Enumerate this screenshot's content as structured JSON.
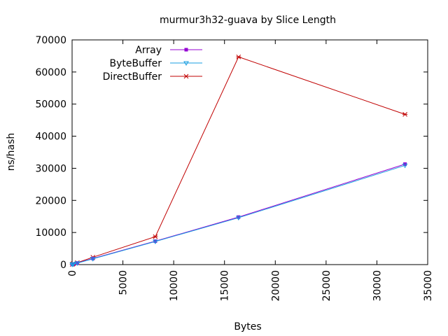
{
  "chart_data": {
    "type": "line",
    "title": "murmur3h32-guava by Slice Length",
    "xlabel": "Bytes",
    "ylabel": "ns/hash",
    "xlim": [
      0,
      35000
    ],
    "ylim": [
      0,
      70000
    ],
    "x_ticks": [
      0,
      5000,
      10000,
      15000,
      20000,
      25000,
      30000,
      35000
    ],
    "y_ticks": [
      0,
      10000,
      20000,
      30000,
      40000,
      50000,
      60000,
      70000
    ],
    "legend_position": "top-left",
    "grid": false,
    "series": [
      {
        "name": "Array",
        "color": "#9400d3",
        "marker": "square",
        "x": [
          16,
          64,
          128,
          512,
          2048,
          8192,
          16384,
          32768
        ],
        "y": [
          60,
          140,
          220,
          500,
          1900,
          7300,
          14800,
          31300
        ]
      },
      {
        "name": "ByteBuffer",
        "color": "#1a9ee0",
        "marker": "triangle-down",
        "x": [
          16,
          64,
          128,
          512,
          2048,
          8192,
          16384,
          32768
        ],
        "y": [
          50,
          120,
          200,
          450,
          1800,
          7200,
          14600,
          30900
        ]
      },
      {
        "name": "DirectBuffer",
        "color": "#c00000",
        "marker": "star",
        "x": [
          16,
          64,
          128,
          512,
          2048,
          8192,
          16384,
          32768
        ],
        "y": [
          80,
          180,
          300,
          600,
          2300,
          8700,
          64700,
          46800
        ]
      }
    ]
  }
}
